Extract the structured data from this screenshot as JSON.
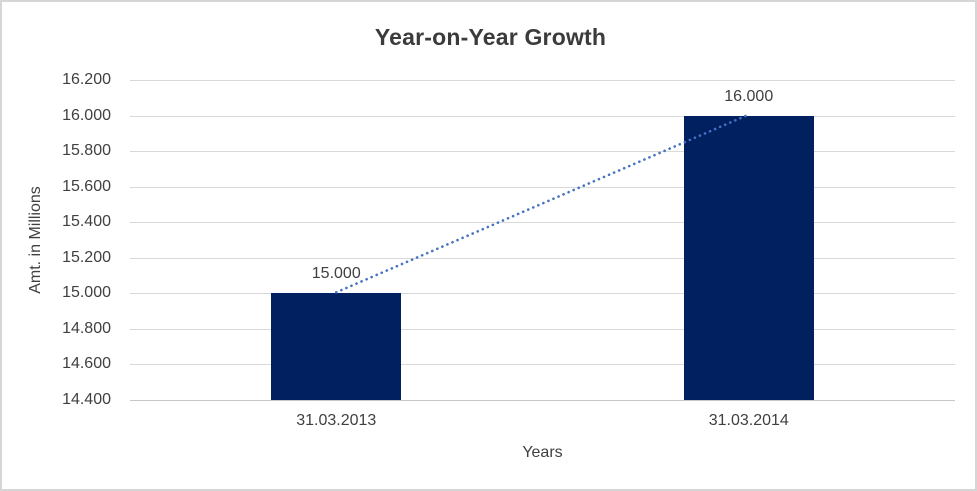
{
  "chart_data": {
    "type": "bar",
    "title": "Year-on-Year Growth",
    "xlabel": "Years",
    "ylabel": "Amt. in Millions",
    "categories": [
      "31.03.2013",
      "31.03.2014"
    ],
    "values": [
      15000,
      16000
    ],
    "data_labels": [
      "15.000",
      "16.000"
    ],
    "y_ticks": [
      "16.200",
      "16.000",
      "15.800",
      "15.600",
      "15.400",
      "15.200",
      "15.000",
      "14.800",
      "14.600",
      "14.400"
    ],
    "ylim": [
      14400,
      16200
    ],
    "grid": "horizontal-gridlines-on",
    "legend": "none",
    "bar_color": "#002060",
    "trendline": {
      "type": "linear",
      "style": "dotted",
      "color": "#4472C4",
      "from_label": "15.000",
      "to_label": "16.000"
    },
    "colors": {
      "text": "#404040",
      "title_text": "#3b3b3b",
      "gridline": "#d9d9d9",
      "axis_line": "#c8c8c8",
      "border": "#d6d6d6",
      "background": "#ffffff"
    }
  }
}
